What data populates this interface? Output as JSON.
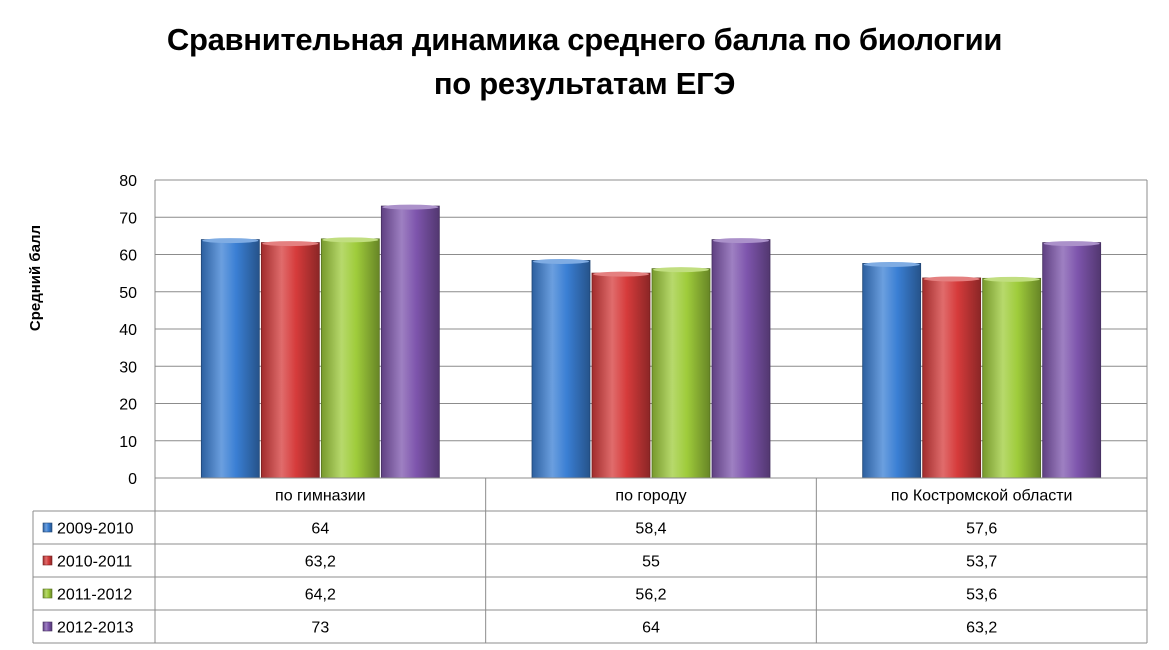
{
  "chart_data": {
    "type": "bar",
    "title_line1": "Сравнительная динамика среднего балла по биологии",
    "title_line2": "по результатам ЕГЭ",
    "ylabel": "Средний балл",
    "xlabel": "",
    "ylim": [
      0,
      80
    ],
    "yticks": [
      0,
      10,
      20,
      30,
      40,
      50,
      60,
      70,
      80
    ],
    "grid": true,
    "legend": "data-table",
    "categories": [
      "по гимназии",
      "по городу",
      "по Костромской области"
    ],
    "series": [
      {
        "name": "2009-2010",
        "values": [
          64,
          58.4,
          57.6
        ],
        "labels": [
          "64",
          "58,4",
          "57,6"
        ],
        "color": "#3a7fd4"
      },
      {
        "name": "2010-2011",
        "values": [
          63.2,
          55,
          53.7
        ],
        "labels": [
          "63,2",
          "55",
          "53,7"
        ],
        "color": "#d63b3b"
      },
      {
        "name": "2011-2012",
        "values": [
          64.2,
          56.2,
          53.6
        ],
        "labels": [
          "64,2",
          "56,2",
          "53,6"
        ],
        "color": "#9fcc3b"
      },
      {
        "name": "2012-2013",
        "values": [
          73,
          64,
          63.2
        ],
        "labels": [
          "73",
          "64",
          "63,2"
        ],
        "color": "#7e55ad"
      }
    ]
  }
}
